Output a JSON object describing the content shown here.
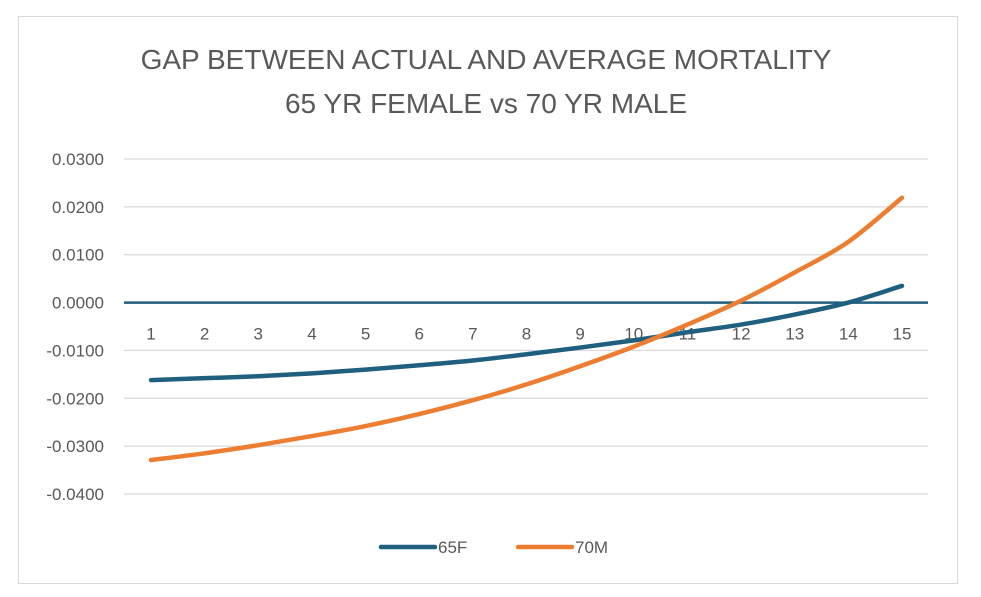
{
  "chart_data": {
    "type": "line",
    "title": "GAP BETWEEN ACTUAL AND AVERAGE MORTALITY",
    "subtitle": "65 YR FEMALE vs 70 YR MALE",
    "xlabel": "",
    "ylabel": "",
    "categories": [
      "1",
      "2",
      "3",
      "4",
      "5",
      "6",
      "7",
      "8",
      "9",
      "10",
      "11",
      "12",
      "13",
      "14",
      "15"
    ],
    "ylim": [
      -0.04,
      0.03
    ],
    "yticks": [
      "0.0300",
      "0.0200",
      "0.0100",
      "0.0000",
      "-0.0100",
      "-0.0200",
      "-0.0300",
      "-0.0400"
    ],
    "grid": true,
    "legend": "bottom",
    "series": [
      {
        "name": "65F",
        "color": "#1f5f7f",
        "values": [
          -0.0162,
          -0.0158,
          -0.0154,
          -0.0148,
          -0.014,
          -0.0131,
          -0.0121,
          -0.0108,
          -0.0094,
          -0.0079,
          -0.0062,
          -0.0046,
          -0.0025,
          0.0,
          0.0035
        ]
      },
      {
        "name": "70M",
        "color": "#ed7d31",
        "values": [
          -0.0329,
          -0.0315,
          -0.0298,
          -0.0279,
          -0.0258,
          -0.0233,
          -0.0204,
          -0.0171,
          -0.0133,
          -0.0092,
          -0.0046,
          0.0004,
          0.0063,
          0.0127,
          0.0219
        ]
      }
    ]
  }
}
